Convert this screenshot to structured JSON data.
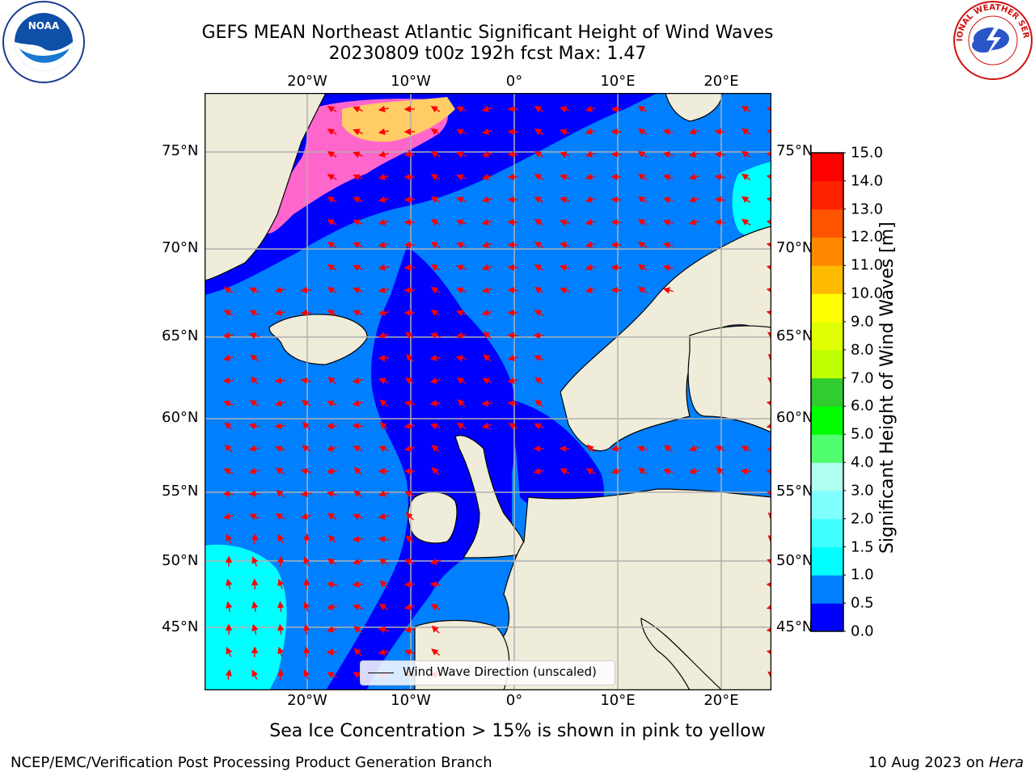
{
  "header": {
    "title_line1": "GEFS MEAN Northeast Atlantic Significant Height of Wind Waves",
    "title_line2": "20230809 t00z 192h fcst   Max: 1.47"
  },
  "logos": {
    "left_name": "NOAA",
    "right_name": "NATIONAL WEATHER SERVICE"
  },
  "map": {
    "lon_labels": [
      "20°W",
      "10°W",
      "0°",
      "10°E",
      "20°E"
    ],
    "lon_values": [
      -20,
      -10,
      0,
      10,
      20
    ],
    "lat_labels": [
      "75°N",
      "70°N",
      "65°N",
      "60°N",
      "55°N",
      "50°N",
      "45°N"
    ],
    "lat_values": [
      75,
      70,
      65,
      60,
      55,
      50,
      45
    ],
    "legend_label": "Wind Wave Direction (unscaled)",
    "arrow_color": "#ff0000",
    "land_color": "#efecda"
  },
  "colorbar": {
    "label": "Significant Height of Wind Waves [m]",
    "ticks": [
      "0.0",
      "0.5",
      "1.0",
      "1.5",
      "2.0",
      "3.0",
      "4.0",
      "5.0",
      "6.0",
      "7.0",
      "8.0",
      "9.0",
      "10.0",
      "11.0",
      "12.0",
      "13.0",
      "14.0",
      "15.0"
    ],
    "colors": [
      "#0000ff",
      "#0080ff",
      "#00ffff",
      "#40ffff",
      "#80ffff",
      "#b0fff0",
      "#50ff70",
      "#00ff00",
      "#30cc30",
      "#c0ff00",
      "#e0ff00",
      "#ffff00",
      "#ffbb00",
      "#ff8800",
      "#ff5500",
      "#ff2200",
      "#ff0000"
    ]
  },
  "notes": {
    "sea_ice": "Sea Ice Concentration > 15% is shown in pink to yellow"
  },
  "footer": {
    "left": "NCEP/EMC/Verification Post Processing Product Generation Branch",
    "right_prefix": "10 Aug 2023 on ",
    "right_host": "Hera"
  }
}
